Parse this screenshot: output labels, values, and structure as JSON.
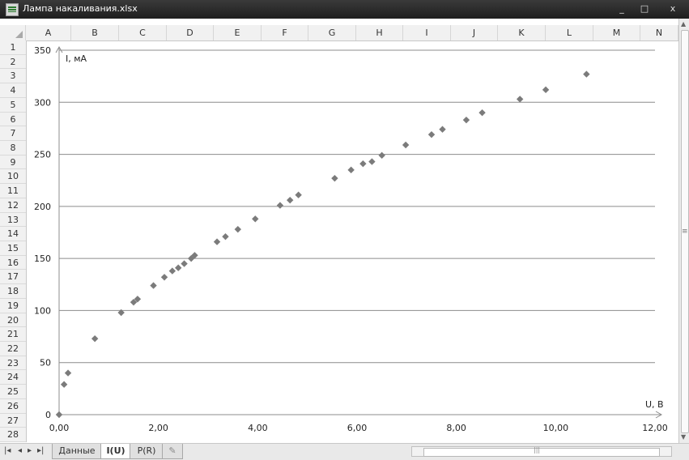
{
  "window": {
    "title": "Лампа накаливания.xlsx",
    "min_label": "_",
    "max_label": "□",
    "close_label": "x"
  },
  "columns": [
    "A",
    "B",
    "C",
    "D",
    "E",
    "F",
    "G",
    "H",
    "I",
    "J",
    "K",
    "L",
    "M",
    "N"
  ],
  "rows": [
    "1",
    "2",
    "3",
    "4",
    "5",
    "6",
    "7",
    "8",
    "9",
    "10",
    "11",
    "12",
    "13",
    "14",
    "15",
    "16",
    "17",
    "18",
    "19",
    "20",
    "21",
    "22",
    "23",
    "24",
    "25",
    "26",
    "27",
    "28"
  ],
  "sheet_tabs": {
    "first": "Данные",
    "active": "I(U)",
    "third": "P(R)",
    "insert_icon": "insert-sheet-icon"
  },
  "nav_icons": [
    "first-sheet-icon",
    "prev-sheet-icon",
    "next-sheet-icon",
    "last-sheet-icon"
  ],
  "colors": {
    "marker": "#7b7b7b",
    "grid": "#8c8c8c",
    "axis": "#8c8c8c"
  },
  "chart_data": {
    "type": "scatter",
    "title": "",
    "xlabel": "U, В",
    "ylabel": "I, мА",
    "xlim": [
      0,
      12
    ],
    "ylim": [
      0,
      350
    ],
    "xticks": [
      0,
      2,
      4,
      6,
      8,
      10,
      12
    ],
    "xtick_labels": [
      "0,00",
      "2,00",
      "4,00",
      "6,00",
      "8,00",
      "10,00",
      "12,00"
    ],
    "yticks": [
      0,
      50,
      100,
      150,
      200,
      250,
      300,
      350
    ],
    "ytick_labels": [
      "0",
      "50",
      "100",
      "150",
      "200",
      "250",
      "300",
      "350"
    ],
    "grid": "horizontal",
    "legend": "none",
    "marker": "diamond",
    "series": [
      {
        "points": [
          [
            0.0,
            0
          ],
          [
            0.1,
            29
          ],
          [
            0.18,
            40
          ],
          [
            0.72,
            73
          ],
          [
            1.25,
            98
          ],
          [
            1.5,
            108
          ],
          [
            1.58,
            111
          ],
          [
            1.9,
            124
          ],
          [
            2.12,
            132
          ],
          [
            2.28,
            138
          ],
          [
            2.4,
            141
          ],
          [
            2.52,
            145
          ],
          [
            2.66,
            150
          ],
          [
            2.73,
            153
          ],
          [
            3.18,
            166
          ],
          [
            3.35,
            171
          ],
          [
            3.6,
            178
          ],
          [
            3.95,
            188
          ],
          [
            4.45,
            201
          ],
          [
            4.65,
            206
          ],
          [
            4.82,
            211
          ],
          [
            5.55,
            227
          ],
          [
            5.88,
            235
          ],
          [
            6.12,
            241
          ],
          [
            6.3,
            243
          ],
          [
            6.5,
            249
          ],
          [
            6.98,
            259
          ],
          [
            7.5,
            269
          ],
          [
            7.72,
            274
          ],
          [
            8.2,
            283
          ],
          [
            8.52,
            290
          ],
          [
            9.28,
            303
          ],
          [
            9.8,
            312
          ],
          [
            10.62,
            327
          ]
        ]
      }
    ]
  }
}
